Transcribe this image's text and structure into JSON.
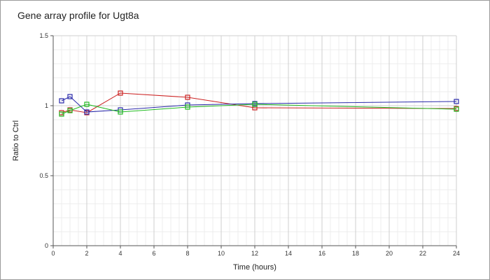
{
  "chart_data": {
    "type": "line",
    "title": "Gene array profile for Ugt8a",
    "xlabel": "Time (hours)",
    "ylabel": "Ratio to Ctrl",
    "xlim": [
      0,
      24
    ],
    "ylim": [
      0,
      1.5
    ],
    "x_ticks": [
      0,
      2,
      4,
      6,
      8,
      10,
      12,
      14,
      16,
      18,
      20,
      22,
      24
    ],
    "y_ticks": [
      0,
      0.5,
      1,
      1.5
    ],
    "y_tick_labels": [
      "0",
      "0.5",
      "1",
      "1.5"
    ],
    "grid": true,
    "marker": "open-square",
    "series": [
      {
        "color": "#cc2222",
        "x": [
          0.5,
          1,
          2,
          4,
          8,
          12,
          24
        ],
        "y": [
          0.95,
          0.97,
          0.95,
          1.09,
          1.06,
          0.985,
          0.98
        ]
      },
      {
        "color": "#2a2aaa",
        "x": [
          0.5,
          1,
          2,
          4,
          8,
          12,
          24
        ],
        "y": [
          1.035,
          1.065,
          0.955,
          0.97,
          1.005,
          1.015,
          1.03
        ]
      },
      {
        "color": "#22bb22",
        "x": [
          0.5,
          1,
          2,
          4,
          8,
          12,
          24
        ],
        "y": [
          0.94,
          0.965,
          1.01,
          0.955,
          0.99,
          1.01,
          0.975
        ]
      }
    ]
  }
}
